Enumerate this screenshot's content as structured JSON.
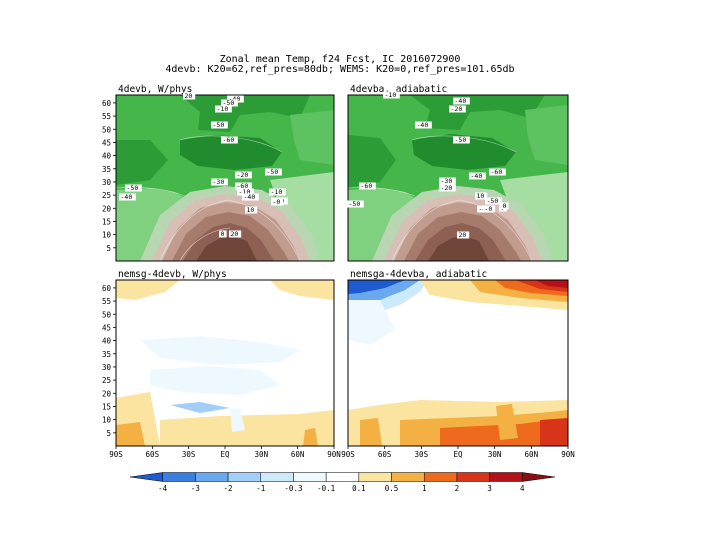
{
  "figure": {
    "title_line1": "Zonal mean Temp, f24 Fcst, IC 2016072900",
    "title_line2": "4devb: K20=62,ref_pres=80db; WEMS: K20=0,ref_pres=101.65db"
  },
  "panels": [
    {
      "title": "4devb, W/phys"
    },
    {
      "title": "4devba, adiabatic"
    },
    {
      "title": "nemsg-4devb, W/phys"
    },
    {
      "title": "nemsga-4devba, adiabatic"
    }
  ],
  "colorbar": {
    "labels": [
      "-4",
      "-3",
      "-2",
      "-1",
      "-0.3",
      "-0.1",
      "0.1",
      "0.5",
      "1",
      "2",
      "3",
      "4"
    ],
    "colors": [
      "#1e5bd0",
      "#3b7fe0",
      "#6aa8f0",
      "#a2cff7",
      "#cdeafb",
      "#eef9ff",
      "#ffffff",
      "#fbe3a0",
      "#f5b043",
      "#ee6b1e",
      "#d8341a",
      "#b3121a",
      "#8a0f14"
    ]
  },
  "chart_data": [
    {
      "type": "heatmap",
      "title": "4devb, W/phys",
      "yticks": [
        5,
        10,
        15,
        20,
        25,
        30,
        35,
        40,
        45,
        50,
        55,
        60
      ],
      "contour_labels": [
        "20",
        "-40",
        "-50",
        "-10",
        "-50",
        "-60",
        "-50",
        "-40",
        "-30",
        "-20",
        "-60",
        "-50",
        "-10",
        "-40",
        "-20",
        "10",
        "0",
        "-10",
        "-0",
        "20"
      ]
    },
    {
      "type": "heatmap",
      "title": "4devba, adiabatic",
      "contour_labels": [
        "-10",
        "-40",
        "-20",
        "-40",
        "-50",
        "-60",
        "-50",
        "-60",
        "-40",
        "-30",
        "-20",
        "10",
        "-40",
        "-50",
        "-0",
        "0",
        "0",
        "20"
      ]
    },
    {
      "type": "heatmap",
      "title": "nemsg-4devb, W/phys",
      "yticks": [
        5,
        10,
        15,
        20,
        25,
        30,
        35,
        40,
        45,
        50,
        55,
        60
      ],
      "xticks": [
        "90S",
        "60S",
        "30S",
        "EQ",
        "30N",
        "60N",
        "90N"
      ]
    },
    {
      "type": "heatmap",
      "title": "nemsga-4devba, adiabatic",
      "xticks": [
        "90S",
        "60S",
        "30S",
        "EQ",
        "30N",
        "60N",
        "90N"
      ]
    }
  ]
}
